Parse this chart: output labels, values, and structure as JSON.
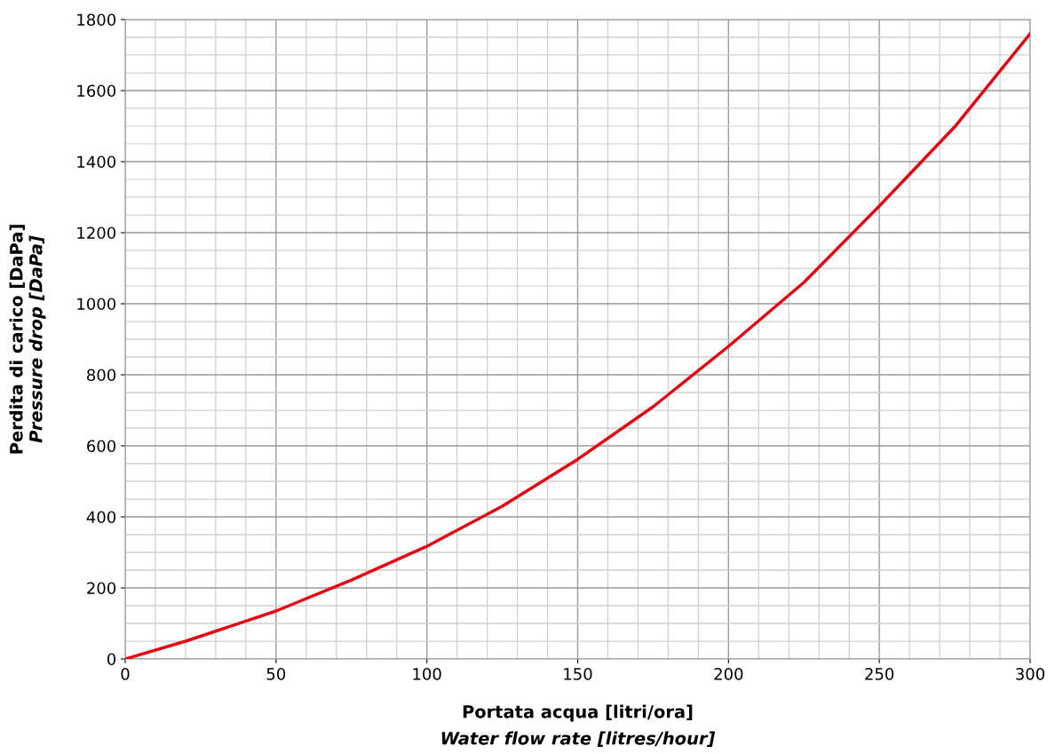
{
  "chart_data": {
    "type": "line",
    "xlabel": "Portata acqua [litri/ora]\nWater flow rate [litres/hour]",
    "ylabel": "Perdita di carico [DaPa]\nPressure drop [DaPa]",
    "x": [
      0,
      20,
      50,
      75,
      100,
      125,
      150,
      175,
      200,
      225,
      250,
      275,
      300
    ],
    "series": [
      {
        "color": "#e30613",
        "values": [
          0,
          50,
          135,
          222,
          317,
          430,
          562,
          710,
          880,
          1060,
          1275,
          1498,
          1760
        ]
      }
    ],
    "xlim": [
      0,
      300
    ],
    "xticks": [
      0,
      50,
      100,
      150,
      200,
      250,
      300
    ],
    "ylim": [
      0,
      1800
    ],
    "yticks": [
      0,
      200,
      400,
      600,
      800,
      1000,
      1200,
      1400,
      1600,
      1800
    ],
    "grid": true,
    "marker": "none",
    "line_style": "solid"
  }
}
